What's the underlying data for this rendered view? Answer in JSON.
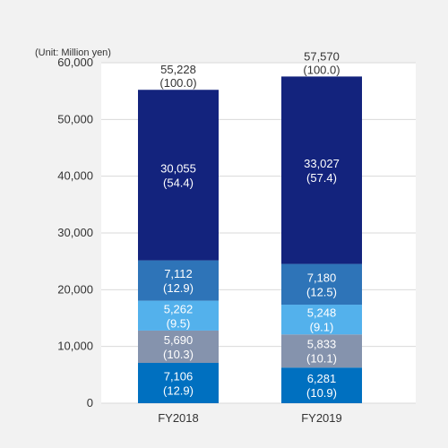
{
  "chart_data": {
    "type": "bar",
    "stacked": true,
    "unit_label": "(Unit: Million yen)",
    "categories": [
      "FY2018",
      "FY2019"
    ],
    "ylim": [
      0,
      60000
    ],
    "yticks": [
      "0",
      "10,000",
      "20,000",
      "30,000",
      "40,000",
      "50,000",
      "60,000"
    ],
    "grid": true,
    "totals": [
      {
        "value": 55228,
        "label": "55,228",
        "pct": "(100.0)"
      },
      {
        "value": 57570,
        "label": "57,570",
        "pct": "(100.0)"
      }
    ],
    "series": [
      {
        "color": "#0070c0",
        "values": [
          7106,
          6281
        ],
        "labels": [
          "7,106",
          "6,281"
        ],
        "pcts": [
          "(12.9)",
          "(10.9)"
        ]
      },
      {
        "color": "#8593ad",
        "values": [
          5690,
          5833
        ],
        "labels": [
          "5,690",
          "5,833"
        ],
        "pcts": [
          "(10.3)",
          "(10.1)"
        ]
      },
      {
        "color": "#53b1ec",
        "values": [
          5262,
          5248
        ],
        "labels": [
          "5,262",
          "5,248"
        ],
        "pcts": [
          "(9.5)",
          "(9.1)"
        ]
      },
      {
        "color": "#2e74b8",
        "values": [
          7112,
          7180
        ],
        "labels": [
          "7,112",
          "7,180"
        ],
        "pcts": [
          "(12.9)",
          "(12.5)"
        ]
      },
      {
        "color": "#13237d",
        "values": [
          30055,
          33027
        ],
        "labels": [
          "30,055",
          "33,027"
        ],
        "pcts": [
          "(54.4)",
          "(57.4)"
        ]
      }
    ]
  }
}
